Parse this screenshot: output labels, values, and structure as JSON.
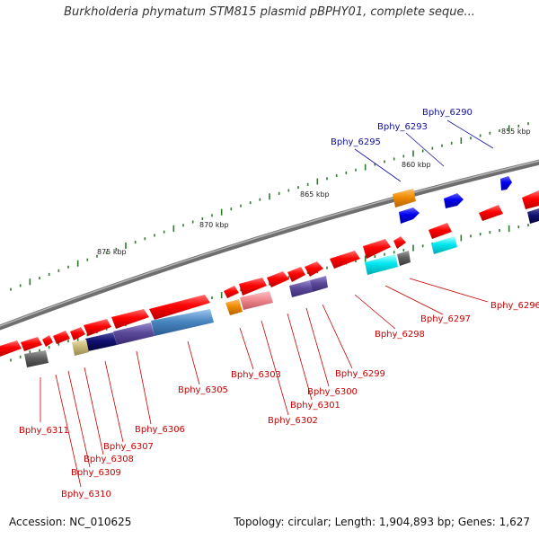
{
  "title": "Burkholderia phymatum STM815 plasmid pBPHY01, complete seque...",
  "footer": {
    "accession": "Accession: NC_010625",
    "summary": "Topology: circular; Length: 1,904,893 bp; Genes: 1,627"
  },
  "scale_labels": [
    "855 kbp",
    "860 kbp",
    "865 kbp",
    "870 kbp",
    "875 kbp"
  ],
  "gene_labels": {
    "forward": [
      "Bphy_6290",
      "Bphy_6293",
      "Bphy_6295"
    ],
    "reverse": [
      "Bphy_6296",
      "Bphy_6297",
      "Bphy_6298",
      "Bphy_6299",
      "Bphy_6300",
      "Bphy_6301",
      "Bphy_6302",
      "Bphy_6303",
      "Bphy_6305",
      "Bphy_6306",
      "Bphy_6307",
      "Bphy_6308",
      "Bphy_6309",
      "Bphy_6310",
      "Bphy_6311"
    ]
  },
  "colors": {
    "forward_label": "#1010a0",
    "reverse_label": "#cc0000",
    "backbone": "#8a8a8a",
    "tick": "#2a7a2a"
  }
}
